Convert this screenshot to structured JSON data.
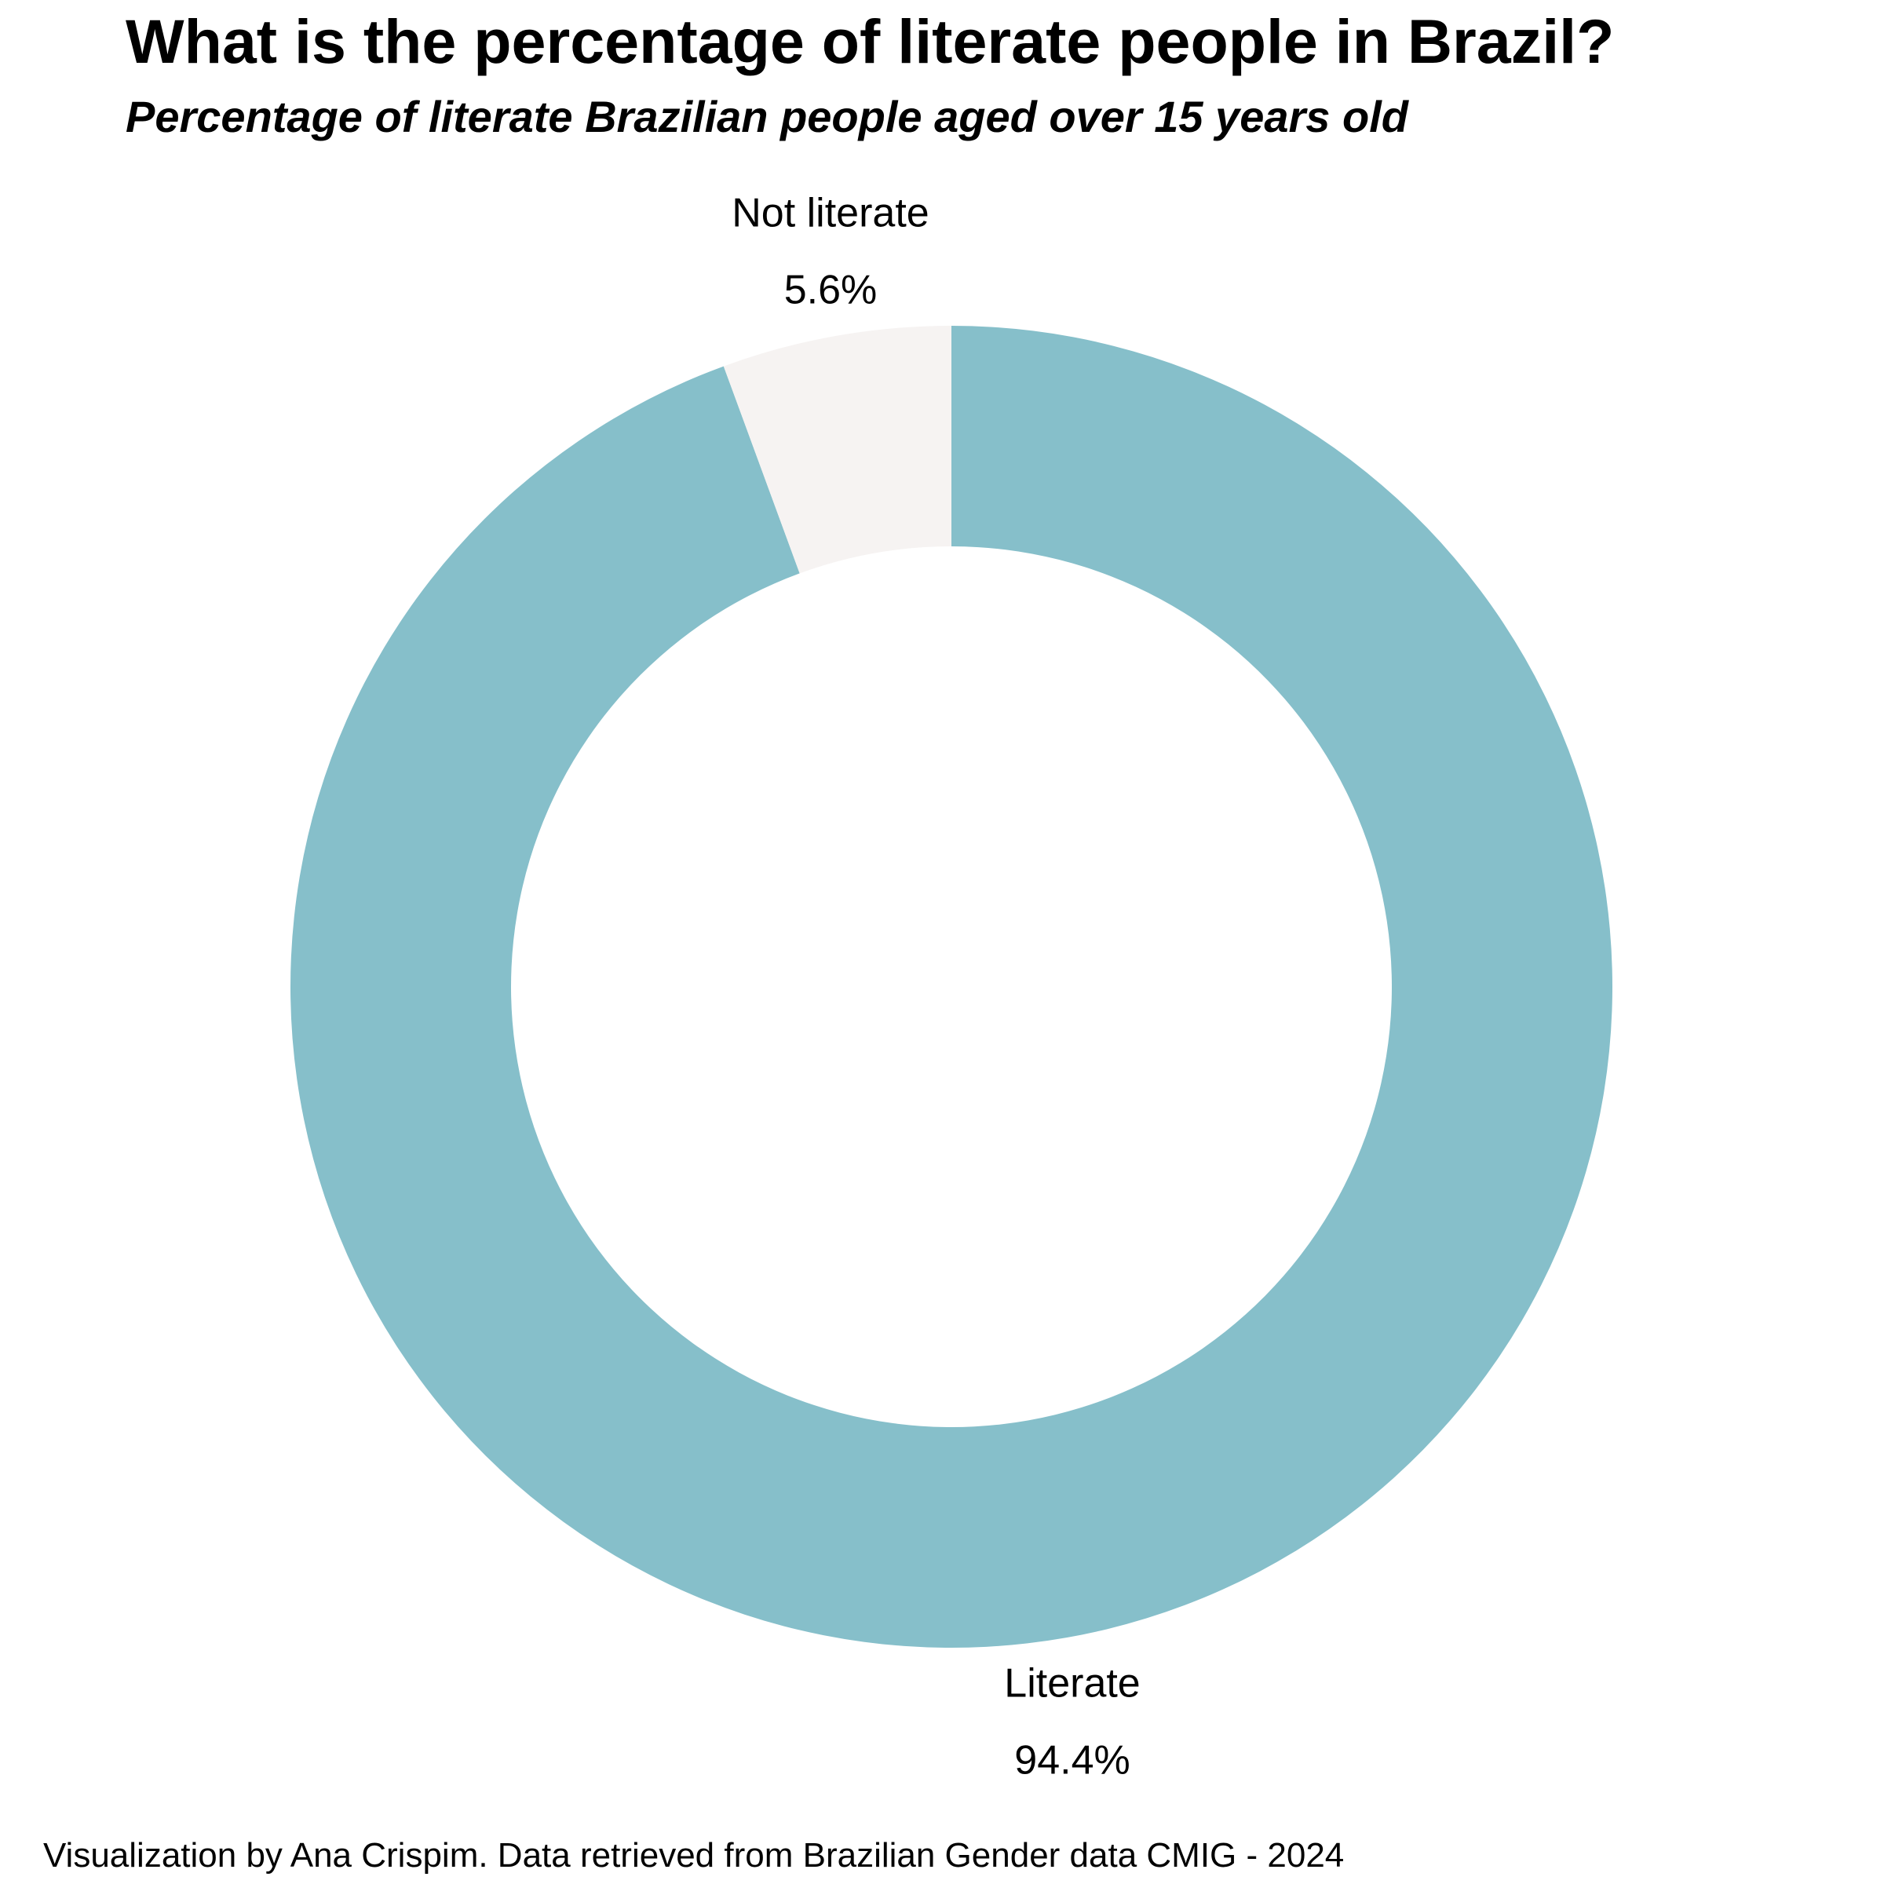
{
  "chart_data": {
    "type": "pie",
    "donut": true,
    "title": "What is the percentage of literate people in Brazil?",
    "subtitle": "Percentage of literate Brazilian people aged over 15 years old",
    "caption": "Visualization by Ana Crispim. Data retrieved from Brazilian Gender data CMIG - 2024",
    "slices": [
      {
        "label": "Literate",
        "value": 94.4,
        "value_label": "94.4%",
        "color": "#86bfca"
      },
      {
        "label": "Not literate",
        "value": 5.6,
        "value_label": "5.6%",
        "color": "#f6f3f2"
      }
    ],
    "start_angle": "12 o'clock",
    "direction": "clockwise"
  }
}
